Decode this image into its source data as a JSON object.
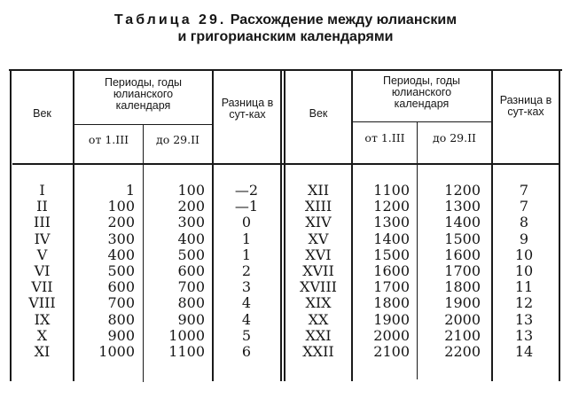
{
  "title": {
    "prefix": "Таблица 29.",
    "line1": "Расхождение между юлианским",
    "line2": "и григорианским календарями"
  },
  "headers": {
    "century": "Век",
    "periods": "Периоды, годы юлианского календаря",
    "from": "от 1.III",
    "to": "до 29.II",
    "difference": "Разница в сут-ках"
  },
  "rows_left": [
    {
      "century": "I",
      "from": "1",
      "to": "100",
      "diff": "—2"
    },
    {
      "century": "II",
      "from": "100",
      "to": "200",
      "diff": "—1"
    },
    {
      "century": "III",
      "from": "200",
      "to": "300",
      "diff": "0"
    },
    {
      "century": "IV",
      "from": "300",
      "to": "400",
      "diff": "1"
    },
    {
      "century": "V",
      "from": "400",
      "to": "500",
      "diff": "1"
    },
    {
      "century": "VI",
      "from": "500",
      "to": "600",
      "diff": "2"
    },
    {
      "century": "VII",
      "from": "600",
      "to": "700",
      "diff": "3"
    },
    {
      "century": "VIII",
      "from": "700",
      "to": "800",
      "diff": "4"
    },
    {
      "century": "IX",
      "from": "800",
      "to": "900",
      "diff": "4"
    },
    {
      "century": "X",
      "from": "900",
      "to": "1000",
      "diff": "5"
    },
    {
      "century": "XI",
      "from": "1000",
      "to": "1100",
      "diff": "6"
    }
  ],
  "rows_right": [
    {
      "century": "XII",
      "from": "1100",
      "to": "1200",
      "diff": "7"
    },
    {
      "century": "XIII",
      "from": "1200",
      "to": "1300",
      "diff": "7"
    },
    {
      "century": "XIV",
      "from": "1300",
      "to": "1400",
      "diff": "8"
    },
    {
      "century": "XV",
      "from": "1400",
      "to": "1500",
      "diff": "9"
    },
    {
      "century": "XVI",
      "from": "1500",
      "to": "1600",
      "diff": "10"
    },
    {
      "century": "XVII",
      "from": "1600",
      "to": "1700",
      "diff": "10"
    },
    {
      "century": "XVIII",
      "from": "1700",
      "to": "1800",
      "diff": "11"
    },
    {
      "century": "XIX",
      "from": "1800",
      "to": "1900",
      "diff": "12"
    },
    {
      "century": "XX",
      "from": "1900",
      "to": "2000",
      "diff": "13"
    },
    {
      "century": "XXI",
      "from": "2000",
      "to": "2100",
      "diff": "13"
    },
    {
      "century": "XXII",
      "from": "2100",
      "to": "2200",
      "diff": "14"
    }
  ]
}
